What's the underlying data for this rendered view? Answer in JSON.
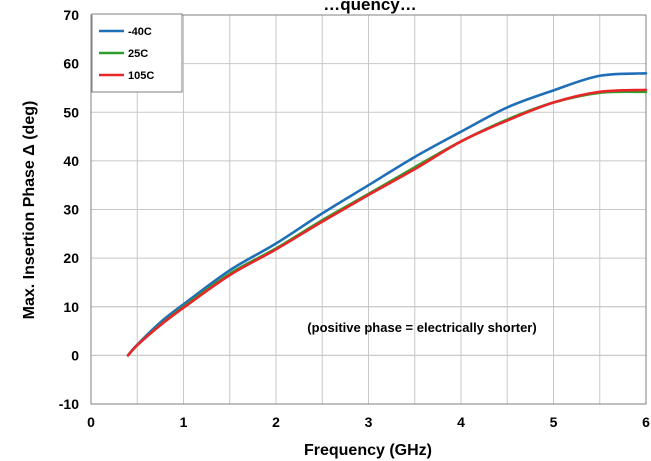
{
  "chart_data": {
    "type": "line",
    "title": "…quency…",
    "xlabel": "Frequency  (GHz)",
    "ylabel": "Max. Insertion Phase Δ (deg)",
    "xlim": [
      0,
      6
    ],
    "ylim": [
      -10,
      70
    ],
    "x_ticks": [
      "0",
      "1",
      "2",
      "3",
      "4",
      "5",
      "6"
    ],
    "y_ticks": [
      "-10",
      "0",
      "10",
      "20",
      "30",
      "40",
      "50",
      "60",
      "70"
    ],
    "grid": true,
    "legend_position": "top-left",
    "annotation": "(positive phase = electrically shorter)",
    "x": [
      0.4,
      0.5,
      0.75,
      1.0,
      1.5,
      2.0,
      2.5,
      3.0,
      3.5,
      4.0,
      4.5,
      5.0,
      5.5,
      6.0
    ],
    "series": [
      {
        "name": "-40C",
        "color": "#1f6fb8",
        "values": [
          0,
          2.2,
          6.8,
          10.5,
          17.5,
          23,
          29.2,
          35,
          40.8,
          46,
          51,
          54.5,
          57.5,
          58
        ]
      },
      {
        "name": "25C",
        "color": "#2ca02c",
        "values": [
          0,
          2.1,
          6.3,
          10,
          16.8,
          22,
          27.8,
          33.2,
          38.7,
          44,
          48.5,
          52,
          54,
          54.2
        ]
      },
      {
        "name": "105C",
        "color": "#e8262a",
        "values": [
          0,
          2.1,
          6.2,
          9.8,
          16.5,
          21.8,
          27.5,
          33,
          38.3,
          44,
          48.3,
          52,
          54.2,
          54.6
        ]
      }
    ]
  }
}
